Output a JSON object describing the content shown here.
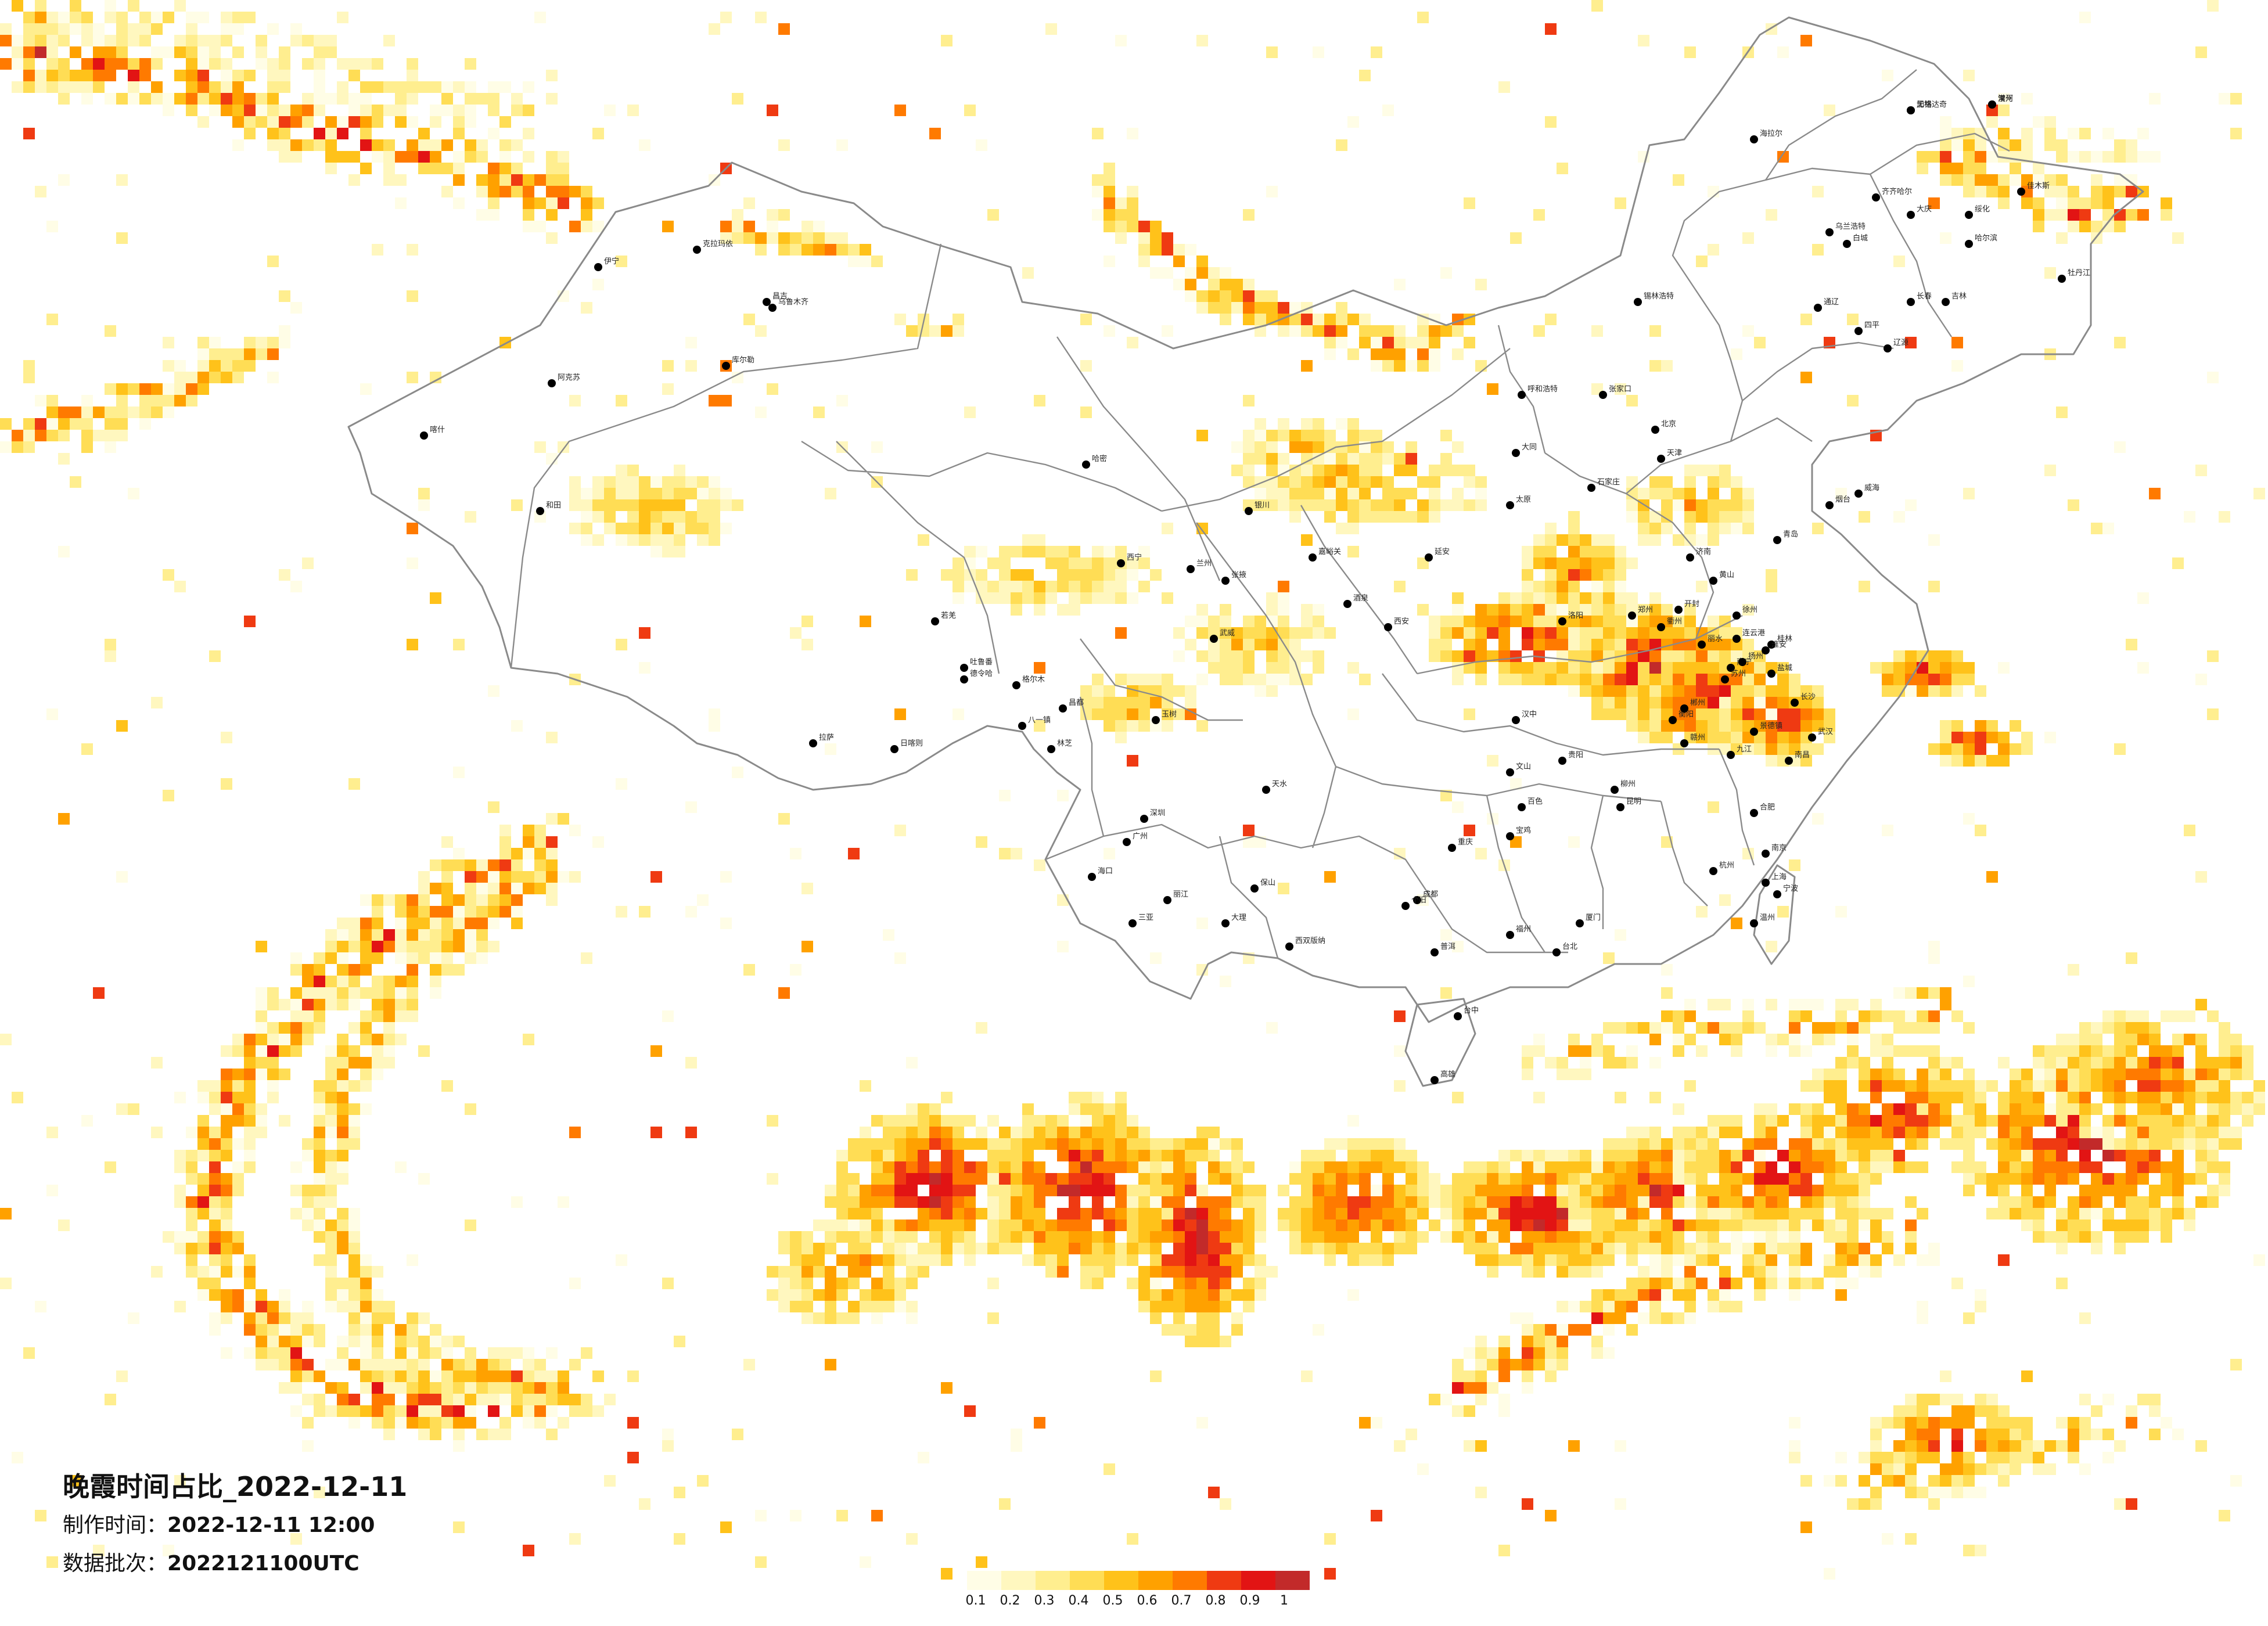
{
  "title": "晚霞时间占比_2022-12-11",
  "made_time": {
    "label": "制作时间：",
    "value": "2022-12-11 12:00"
  },
  "batch": {
    "label": "数据批次：",
    "value": "2022121100UTC"
  },
  "legend": {
    "ticks": [
      "0.1",
      "0.2",
      "0.3",
      "0.4",
      "0.5",
      "0.6",
      "0.7",
      "0.8",
      "0.9",
      "1"
    ],
    "colors": [
      "#fffde6",
      "#fff7bf",
      "#ffee8f",
      "#ffdd55",
      "#ffc21a",
      "#ffa100",
      "#ff7a00",
      "#ef3a12",
      "#e21414",
      "#c22a2a"
    ]
  },
  "map_colors": {
    "border": "#888888",
    "city_dot": "#000000"
  },
  "cities": [
    "加格达奇",
    "漠河",
    "海拉尔",
    "齐齐哈尔",
    "大庆",
    "绥化",
    "哈尔滨",
    "佳木斯",
    "牡丹江",
    "乌兰浩特",
    "白城",
    "通辽",
    "四平",
    "长春",
    "吉林",
    "辽源",
    "锡林浩特",
    "呼和浩特",
    "张家口",
    "北京",
    "天津",
    "石家庄",
    "太原",
    "大同",
    "济南",
    "青岛",
    "烟台",
    "威海",
    "郑州",
    "开封",
    "洛阳",
    "西安",
    "延安",
    "银川",
    "兰州",
    "西宁",
    "乌鲁木齐",
    "昌吉",
    "克拉玛依",
    "伊宁",
    "阿克苏",
    "喀什",
    "和田",
    "吐鲁番",
    "哈密",
    "库尔勒",
    "若羌",
    "拉萨",
    "日喀则",
    "林芝",
    "八一镇",
    "昌都",
    "玉树",
    "格尔木",
    "德令哈",
    "嘉峪关",
    "酒泉",
    "张掖",
    "武威",
    "天水",
    "汉中",
    "宝鸡",
    "成都",
    "重庆",
    "贵阳",
    "昆明",
    "南宁",
    "桂林",
    "长沙",
    "武汉",
    "南昌",
    "合肥",
    "南京",
    "上海",
    "杭州",
    "宁波",
    "温州",
    "福州",
    "厦门",
    "台北",
    "台中",
    "高雄",
    "广州",
    "深圳",
    "海口",
    "三亚",
    "丽江",
    "大理",
    "保山",
    "西双版纳",
    "普洱",
    "个旧",
    "文山",
    "百色",
    "柳州",
    "衡阳",
    "郴州",
    "赣州",
    "九江",
    "景德镇",
    "黄山",
    "衢州",
    "丽水",
    "连云港",
    "徐州",
    "淮安",
    "盐城",
    "扬州",
    "苏州",
    "无锡",
    "常州"
  ]
}
